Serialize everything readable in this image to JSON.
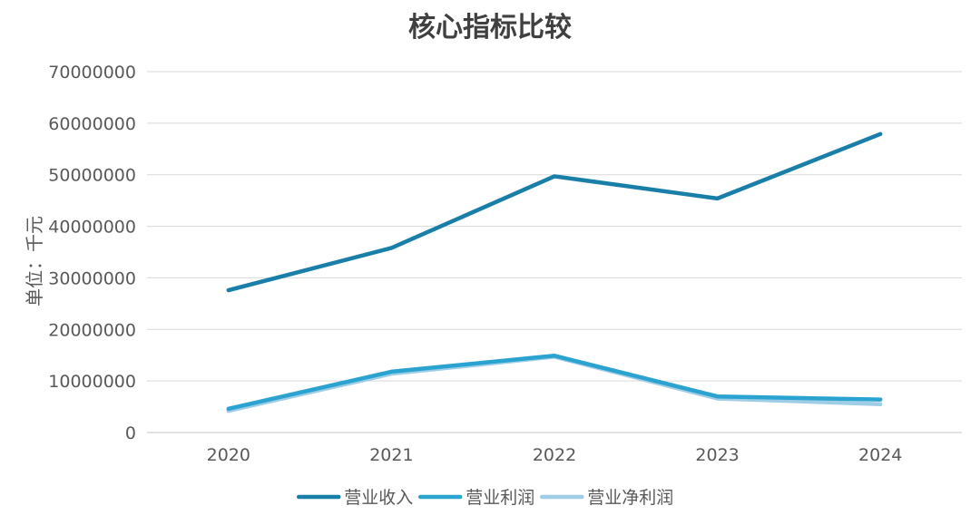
{
  "chart_data": {
    "type": "line",
    "title": "核心指标比较",
    "ylabel": "单位：千元",
    "xlabel": "",
    "categories": [
      "2020",
      "2021",
      "2022",
      "2023",
      "2024"
    ],
    "ylim": [
      0,
      70000000
    ],
    "yticks": [
      0,
      10000000,
      20000000,
      30000000,
      40000000,
      50000000,
      60000000,
      70000000
    ],
    "ytick_labels": [
      "0",
      "10000000",
      "20000000",
      "30000000",
      "40000000",
      "50000000",
      "60000000",
      "70000000"
    ],
    "grid": true,
    "legend_position": "bottom",
    "series": [
      {
        "name": "营业收入",
        "color": "#1a7fa8",
        "values": [
          27600000,
          35800000,
          49700000,
          45400000,
          57900000
        ]
      },
      {
        "name": "营业利润",
        "color": "#2ba3d1",
        "values": [
          4600000,
          11800000,
          14900000,
          7000000,
          6400000
        ]
      },
      {
        "name": "营业净利润",
        "color": "#9fcde6",
        "values": [
          4200000,
          11400000,
          14700000,
          6600000,
          5500000
        ]
      }
    ]
  }
}
